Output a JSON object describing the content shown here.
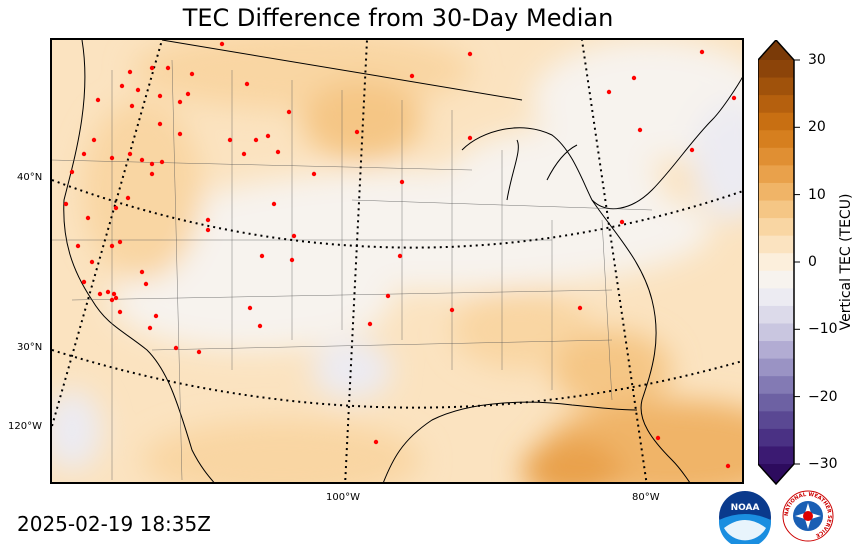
{
  "title": "TEC Difference from 30-Day Median",
  "timestamp": "2025-02-19 18:35Z",
  "colorbar": {
    "label": "Vertical TEC (TECU)",
    "ticks": [
      "30",
      "20",
      "10",
      "0",
      "−10",
      "−20",
      "−30"
    ],
    "colors": [
      "#7a3a08",
      "#8c4409",
      "#a0520b",
      "#b5600e",
      "#c86f12",
      "#d67f1f",
      "#e08f33",
      "#e9a14b",
      "#f0b467",
      "#f5c685",
      "#f9d6a3",
      "#fbe3c0",
      "#fcefdc",
      "#f7f3ee",
      "#ecebf2",
      "#dcdaea",
      "#c9c6e0",
      "#b2acd3",
      "#9a93c4",
      "#837ab4",
      "#6d61a3",
      "#5a4893",
      "#4a3184",
      "#3b1a72",
      "#2d0b5e"
    ]
  },
  "latitudes": [
    "40°N",
    "30°N"
  ],
  "longitudes": [
    "120°W",
    "100°W",
    "80°W"
  ],
  "logos": {
    "noaa": "NOAA",
    "nws_ring": "NATIONAL WEATHER SERVICE"
  }
}
